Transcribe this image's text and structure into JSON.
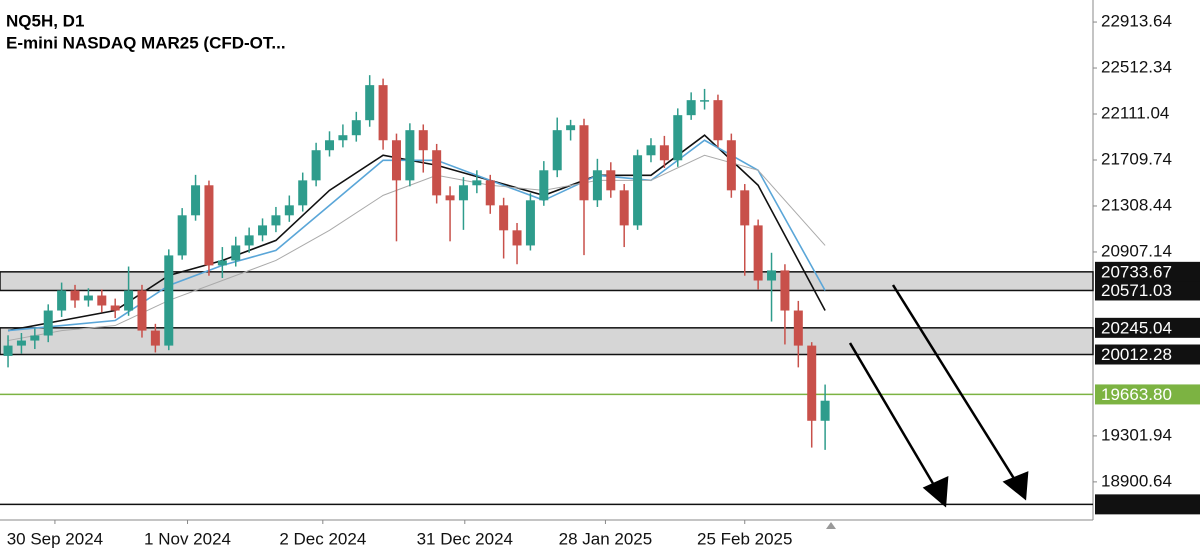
{
  "chart_data": {
    "type": "candlestick",
    "title": "NQ5H, D1",
    "subtitle": "E-mini NASDAQ MAR25 (CFD-OT...",
    "xlim": [
      -0.6,
      81
    ],
    "xticks": [
      {
        "value": 3.5,
        "label": "30 Sep 2024"
      },
      {
        "value": 13.4,
        "label": "1 Nov 2024"
      },
      {
        "value": 23.5,
        "label": "2 Dec 2024"
      },
      {
        "value": 34.1,
        "label": "31 Dec 2024"
      },
      {
        "value": 44.6,
        "label": "28 Jan 2025"
      },
      {
        "value": 55,
        "label": "25 Feb 2025"
      }
    ],
    "ylim": [
      18568,
      23106
    ],
    "yticks": [
      22913.64,
      22512.34,
      22111.04,
      21709.74,
      21308.44,
      20907.14,
      19301.94,
      18900.64
    ],
    "up_color": "#2e9c8c",
    "down_color": "#c8504a",
    "open": [
      20000,
      20090,
      20134,
      20178,
      20396,
      20571,
      20484,
      20527,
      20440,
      20396,
      20571,
      20221,
      20090,
      20877,
      21227,
      21489,
      20790,
      20833,
      20964,
      21052,
      21139,
      21227,
      21314,
      21532,
      21795,
      21882,
      21926,
      22057,
      22363,
      21882,
      21532,
      21970,
      21795,
      21401,
      21358,
      21489,
      21532,
      21314,
      21096,
      20964,
      21358,
      21620,
      21970,
      22013,
      21358,
      21620,
      21445,
      21139,
      21751,
      21838,
      21707,
      22101,
      22232,
      22232,
      21882,
      21445,
      21139,
      20658,
      20746,
      20396,
      20090,
      19434
    ],
    "high": [
      20180,
      20200,
      20240,
      20450,
      20640,
      20620,
      20590,
      20580,
      20500,
      20780,
      20620,
      20280,
      20930,
      21290,
      21580,
      21530,
      20950,
      21040,
      21120,
      21200,
      21300,
      21400,
      21600,
      21860,
      21960,
      22020,
      22130,
      22450,
      22420,
      21940,
      22030,
      22020,
      21850,
      21480,
      21560,
      21620,
      21580,
      21380,
      21160,
      21420,
      21700,
      22080,
      22060,
      22070,
      21720,
      21690,
      21500,
      21800,
      21900,
      21920,
      22160,
      22300,
      22330,
      22280,
      21940,
      21500,
      21190,
      20900,
      20800,
      20480,
      20120,
      19750
    ],
    "low": [
      19900,
      20020,
      20060,
      20120,
      20340,
      20420,
      20430,
      20380,
      20330,
      20350,
      20160,
      20030,
      20050,
      20840,
      21180,
      20700,
      20680,
      20780,
      20900,
      21000,
      21080,
      21170,
      21260,
      21480,
      21740,
      21820,
      21870,
      22000,
      21800,
      21000,
      21480,
      21600,
      21330,
      21000,
      21100,
      21420,
      21240,
      20850,
      20800,
      20920,
      21310,
      21560,
      21880,
      20880,
      21300,
      21380,
      20950,
      21100,
      21690,
      21640,
      21650,
      22060,
      22150,
      21820,
      21380,
      20700,
      20580,
      20300,
      20100,
      19900,
      19200,
      19180
    ],
    "close": [
      20090,
      20134,
      20178,
      20396,
      20571,
      20484,
      20527,
      20440,
      20396,
      20571,
      20221,
      20090,
      20877,
      21227,
      21489,
      20790,
      20833,
      20964,
      21052,
      21139,
      21227,
      21314,
      21532,
      21795,
      21882,
      21926,
      22057,
      22363,
      21882,
      21532,
      21970,
      21795,
      21401,
      21358,
      21489,
      21532,
      21314,
      21096,
      20964,
      21358,
      21620,
      21970,
      22013,
      21358,
      21620,
      21445,
      21139,
      21751,
      21838,
      21707,
      22101,
      22232,
      22232,
      21882,
      21445,
      21139,
      20658,
      20746,
      20396,
      20090,
      19434,
      19609
    ],
    "moving_averages": [
      {
        "color": "#111111",
        "x": [
          0,
          4,
          8,
          12,
          16,
          20,
          24,
          28,
          32,
          36,
          40,
          44,
          48,
          52,
          56,
          61
        ],
        "values": [
          20221,
          20309,
          20396,
          20702,
          20833,
          21008,
          21445,
          21751,
          21664,
          21532,
          21401,
          21576,
          21576,
          21926,
          21489,
          20396
        ]
      },
      {
        "color": "#5aa6d8",
        "x": [
          0,
          4,
          8,
          12,
          16,
          20,
          24,
          28,
          32,
          36,
          40,
          44,
          48,
          52,
          56,
          61
        ],
        "values": [
          20221,
          20265,
          20309,
          20615,
          20790,
          20921,
          21314,
          21707,
          21707,
          21532,
          21358,
          21576,
          21532,
          21882,
          21620,
          20571
        ]
      },
      {
        "color": "#aaaaaa",
        "x": [
          0,
          4,
          8,
          12,
          16,
          20,
          24,
          28,
          32,
          36,
          40,
          44,
          48,
          52,
          56,
          61
        ],
        "values": [
          20134,
          20221,
          20265,
          20484,
          20658,
          20833,
          21096,
          21401,
          21576,
          21489,
          21445,
          21532,
          21532,
          21751,
          21620,
          20964
        ]
      }
    ],
    "zones": [
      [
        20571.03,
        20733.67
      ],
      [
        20012.28,
        20245.04
      ]
    ],
    "levels": [
      {
        "value": 19663.8,
        "label": "19663.80",
        "color": "#7cb342"
      },
      {
        "value": 18704.44,
        "color": "#111111"
      }
    ]
  }
}
